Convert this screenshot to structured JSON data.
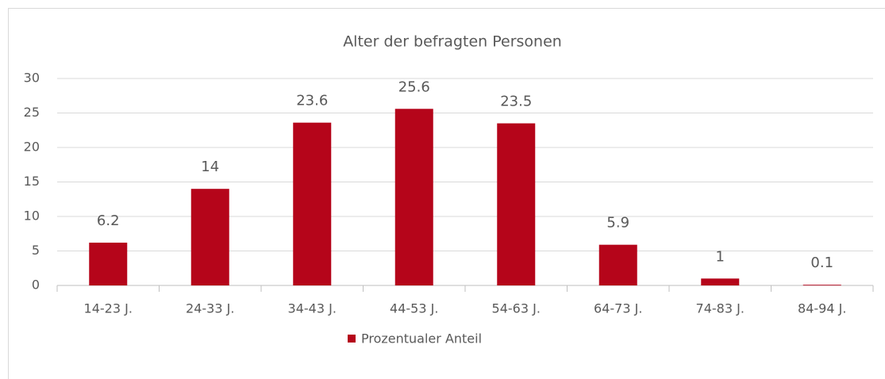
{
  "chart_data": {
    "type": "bar",
    "title": "Alter der befragten Personen",
    "categories": [
      "14-23 J.",
      "24-33 J.",
      "34-43 J.",
      "44-53 J.",
      "54-63 J.",
      "64-73 J.",
      "74-83 J.",
      "84-94 J."
    ],
    "series": [
      {
        "name": "Prozentualer Anteil",
        "color": "#b5051a",
        "values": [
          6.2,
          14,
          23.6,
          25.6,
          23.5,
          5.9,
          1,
          0.1
        ]
      }
    ],
    "ylim": [
      0,
      30
    ],
    "yticks": [
      0,
      5,
      10,
      15,
      20,
      25,
      30
    ],
    "grid": true,
    "legend": "bottom"
  }
}
